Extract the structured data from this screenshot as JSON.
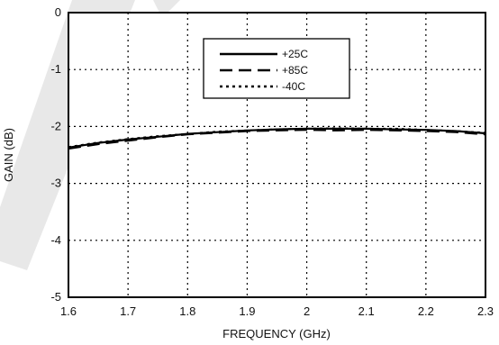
{
  "chart_data": {
    "type": "line",
    "title": "",
    "xlabel": "FREQUENCY (GHz)",
    "ylabel": "GAIN (dB)",
    "xlim": [
      1.6,
      2.3
    ],
    "ylim": [
      -5,
      0
    ],
    "x_ticks": [
      1.6,
      1.7,
      1.8,
      1.9,
      2.0,
      2.1,
      2.2,
      2.3
    ],
    "x_tick_labels": [
      "1.6",
      "1.7",
      "1.8",
      "1.9",
      "2",
      "2.1",
      "2.2",
      "2.3"
    ],
    "y_ticks": [
      0,
      -1,
      -2,
      -3,
      -4,
      -5
    ],
    "y_tick_labels": [
      "0",
      "-1",
      "-2",
      "-3",
      "-4",
      "-5"
    ],
    "grid": true,
    "legend_position": "top-center",
    "x": [
      1.6,
      1.65,
      1.7,
      1.75,
      1.8,
      1.85,
      1.9,
      1.95,
      2.0,
      2.05,
      2.1,
      2.15,
      2.2,
      2.25,
      2.3
    ],
    "series": [
      {
        "name": "+25C",
        "style": "solid",
        "color": "#000000",
        "values": [
          -2.37,
          -2.29,
          -2.23,
          -2.18,
          -2.13,
          -2.1,
          -2.07,
          -2.05,
          -2.04,
          -2.04,
          -2.04,
          -2.05,
          -2.06,
          -2.08,
          -2.12
        ]
      },
      {
        "name": "+85C",
        "style": "dashed",
        "color": "#000000",
        "values": [
          -2.39,
          -2.31,
          -2.25,
          -2.19,
          -2.14,
          -2.11,
          -2.08,
          -2.07,
          -2.06,
          -2.07,
          -2.06,
          -2.07,
          -2.08,
          -2.1,
          -2.14
        ]
      },
      {
        "name": "-40C",
        "style": "dotted",
        "color": "#000000",
        "values": [
          -2.36,
          -2.28,
          -2.22,
          -2.17,
          -2.13,
          -2.09,
          -2.07,
          -2.05,
          -2.04,
          -2.03,
          -2.04,
          -2.04,
          -2.06,
          -2.08,
          -2.11
        ]
      }
    ]
  }
}
